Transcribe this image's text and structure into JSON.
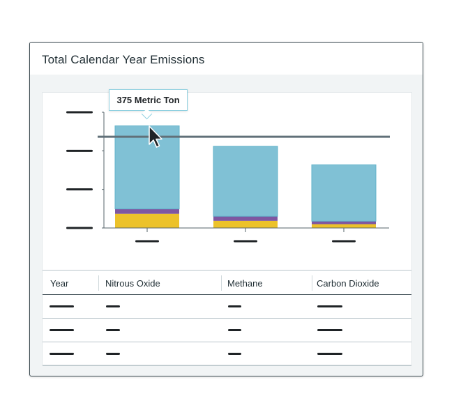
{
  "card": {
    "title": "Total Calendar Year Emissions"
  },
  "tooltip": {
    "text": "375 Metric Ton"
  },
  "colors": {
    "nitrous_oxide": "#ecc22a",
    "methane": "#7e57a1",
    "carbon_dioxide": "#80c1d5",
    "reference_line": "#617079"
  },
  "chart_data": {
    "type": "bar",
    "stacked": true,
    "categories": [
      "",
      "",
      ""
    ],
    "series": [
      {
        "name": "Nitrous Oxide",
        "color": "#ecc22a",
        "values": [
          52,
          26,
          14
        ]
      },
      {
        "name": "Methane",
        "color": "#7e57a1",
        "values": [
          18,
          17,
          11
        ]
      },
      {
        "name": "Carbon Dioxide",
        "color": "#80c1d5",
        "values": [
          305,
          257,
          207
        ]
      }
    ],
    "ylim": [
      0,
      425
    ],
    "yticks": [
      "",
      "",
      "",
      ""
    ],
    "reference_line": 335,
    "title": "Total Calendar Year Emissions",
    "xlabel": "",
    "ylabel": "",
    "grid": false,
    "legend": "table-below",
    "highlight": {
      "category_index": 0,
      "label": "375 Metric Ton"
    }
  },
  "table": {
    "columns": [
      "Year",
      "Nitrous Oxide",
      "Methane",
      "Carbon Dioxide"
    ],
    "rows": [
      [
        "",
        "",
        "",
        ""
      ],
      [
        "",
        "",
        "",
        ""
      ],
      [
        "",
        "",
        "",
        ""
      ]
    ]
  },
  "cursor": {
    "icon": "mouse-pointer-icon"
  }
}
